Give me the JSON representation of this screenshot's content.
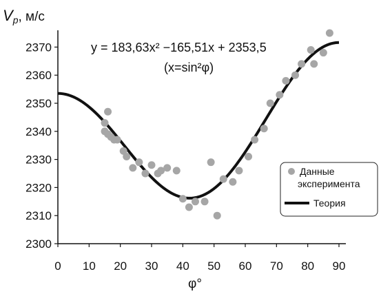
{
  "chart_data": {
    "type": "scatter",
    "ylabel_main": "V",
    "ylabel_sub": "p",
    "ylabel_unit": ", м/с",
    "xlabel": "φ°",
    "xlim": [
      0,
      90
    ],
    "ylim": [
      2300,
      2375
    ],
    "xticks": [
      0,
      10,
      20,
      30,
      40,
      50,
      60,
      70,
      80,
      90
    ],
    "yticks": [
      2300,
      2310,
      2320,
      2330,
      2340,
      2350,
      2360,
      2370
    ],
    "formula_line1": "y = 183,63x² −165,51x + 2353,5",
    "formula_line2": "(x=sin²φ)",
    "legend": {
      "placement": "right",
      "entries": [
        "Данные эксперимента",
        "Теория"
      ]
    },
    "colors": {
      "points": "#a6a6a6",
      "theory": "#111111"
    },
    "series": [
      {
        "name": "Данные эксперимента",
        "kind": "scatter",
        "points": [
          [
            15,
            2343
          ],
          [
            16,
            2347
          ],
          [
            15,
            2340
          ],
          [
            16,
            2339
          ],
          [
            17,
            2338
          ],
          [
            18,
            2337
          ],
          [
            19,
            2337
          ],
          [
            21,
            2333
          ],
          [
            22,
            2331
          ],
          [
            24,
            2327
          ],
          [
            26,
            2329
          ],
          [
            28,
            2325
          ],
          [
            30,
            2328
          ],
          [
            32,
            2325
          ],
          [
            33,
            2326
          ],
          [
            35,
            2327
          ],
          [
            38,
            2326
          ],
          [
            40,
            2316
          ],
          [
            42,
            2313
          ],
          [
            44,
            2315
          ],
          [
            47,
            2315
          ],
          [
            49,
            2329
          ],
          [
            51,
            2310
          ],
          [
            53,
            2323
          ],
          [
            56,
            2322
          ],
          [
            58,
            2326
          ],
          [
            61,
            2331
          ],
          [
            63,
            2337
          ],
          [
            66,
            2341
          ],
          [
            68,
            2350
          ],
          [
            71,
            2353
          ],
          [
            73,
            2358
          ],
          [
            76,
            2360
          ],
          [
            78,
            2364
          ],
          [
            81,
            2369
          ],
          [
            82,
            2364
          ],
          [
            85,
            2368
          ],
          [
            87,
            2375
          ]
        ]
      },
      {
        "name": "Теория",
        "kind": "line",
        "a": 183.63,
        "b": -165.51,
        "c": 2353.5
      }
    ]
  }
}
